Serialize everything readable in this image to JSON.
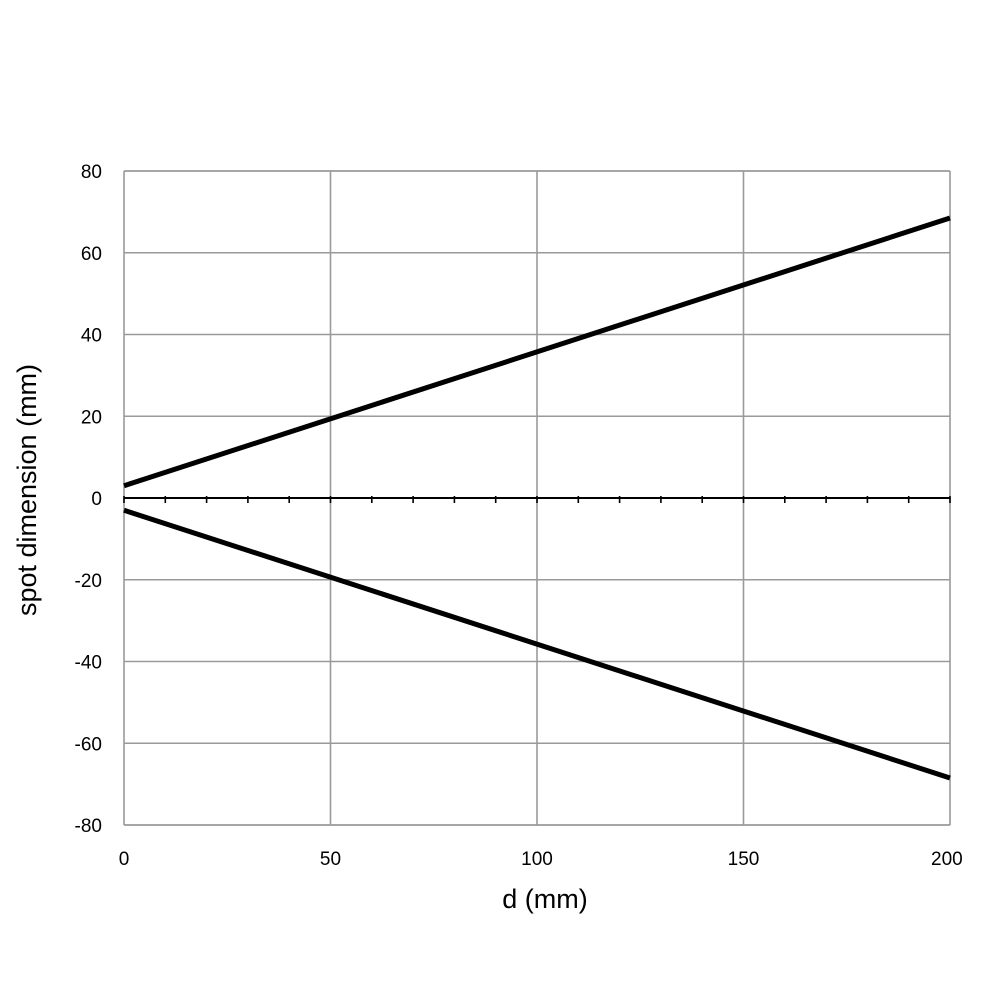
{
  "chart_data": {
    "type": "line",
    "title": "",
    "xlabel": "d (mm)",
    "ylabel": "spot dimension (mm)",
    "xlim": [
      0,
      200
    ],
    "ylim": [
      -80,
      80
    ],
    "x_ticks": [
      0,
      50,
      100,
      150,
      200
    ],
    "x_tick_labels": [
      "0",
      "50",
      "100",
      "150",
      "200"
    ],
    "y_ticks": [
      80,
      60,
      40,
      20,
      0,
      -20,
      -40,
      -60,
      -80
    ],
    "y_tick_labels": [
      "80",
      "60",
      "40",
      "20",
      "0",
      "-20",
      "-40",
      "-60",
      "-80"
    ],
    "x_minor_tick_step": 10,
    "grid": true,
    "legend": "none",
    "series": [
      {
        "x": [
          0,
          200
        ],
        "y": [
          3,
          68.5
        ]
      },
      {
        "x": [
          0,
          200
        ],
        "y": [
          -3,
          -68.5
        ]
      }
    ],
    "colors": {
      "line": "#000000",
      "grid": "#9a9a9a",
      "zero_axis": "#000000"
    }
  }
}
